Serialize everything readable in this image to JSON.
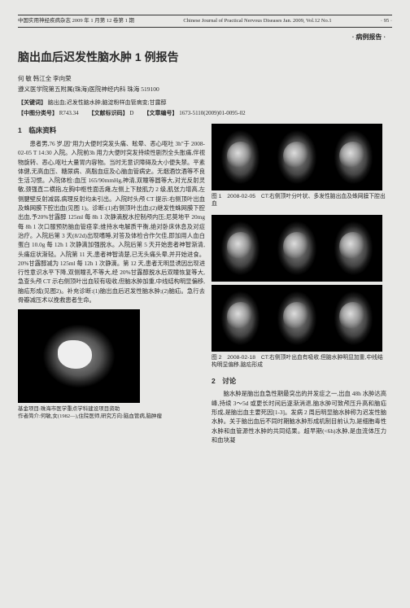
{
  "header": {
    "left": "中国实用神经疾病杂志 2009 年 1 月第 12 卷第 1 期",
    "center": "Chinese Journal of Practical Nervous Diseases Jan. 2009, Vol.12 No.1",
    "page": "· 95 ·"
  },
  "category": "· 病例报告 ·",
  "title": "脑出血后迟发性脑水肿 1 例报告",
  "authors": "何 敏   韩江全   李向荣",
  "affiliation": "遵义医学院第五附属(珠海)医院神经内科   珠海   519100",
  "keywords": {
    "label": "【关键词】",
    "text": "脑出血;迟发性脑水肿;脑淀粉样血管病变;甘露醇"
  },
  "classification": {
    "class_label": "【中图分类号】",
    "class_val": "R743.34",
    "doc_label": "【文献标识码】",
    "doc_val": "D",
    "article_label": "【文章编号】",
    "article_val": "1673-5110(2009)01-0095-02"
  },
  "section1_title": "1　临床资料",
  "body_text": "患者男,76 岁,因\"用力大便时突发头痛、眩晕、恶心呕吐 3h\"于 2008-02-05 T 14:30 入院。入院前3h 用力大便时突发持续性剧烈全头胀痛,伴视物旋转、恶心,呕吐大量胃内容物。当时无意识障碍及大小便失禁。平素体健,无高血压、糖尿病、高脂血症及心脑血管病史。无烟酒饮酒等不良生活习惯。入院体检:血压 165/90mmHg,神清,双瞳等圆等大,对光反射灵敏,颈强直二横指,左胸中枢性面舌瘫,左侧上下肢肌力 2 级,肌张力增高,左侧腱壁反射减弱,病理反射均未引出。入院时头颅 CT 提示:右侧顶叶出血及蛛网膜下腔出血(见图 1)。诊断:(1)右侧顶叶出血;(2)继发性蛛网膜下腔出血,予20%甘露醇 125ml 每 8h 1 次静滴脱水控制颅内压;尼莫地平 20mg 每 8h 1 次口服预防脑血管痉挛;维持水电解质平衡,绝对卧床休息及对症治疗。入院后第 3 天(8/2d)出现嗜睡,对答及体检合作欠佳,即加用人血白蛋白 10.0g 每 12h 1 次静滴加强脱水。入院后第 5 天开始患者神智渐清,头痛症状渐轻。入院第 11 天,患者神智清楚,已无头痛头晕,并开始进食。20%甘露醇减为 125ml 每 12h 1 次静滴。第 12 天,患者无明显诱因出现进行性意识水平下降,双侧瞳孔不等大,经 20%甘露醇脱水后双瞳恢复等大,急查头颅 CT 示右侧顶叶出血较有吸收,但脑水肿加重,中线结构明显偏移,脑疝形成(见图2)。补充诊断:(1)脑出血后迟发性脑水肿;(2)脑疝。急行去骨瓣减压术以挽救患者生命。",
  "fig1_caption": "图 1　2008-02-05　CT:右侧顶叶分叶状、多发性脑出血及蛛网膜下腔出血",
  "fig2_caption": "图 2　2008-02-18　CT:右侧顶叶出血有吸收,但脑水肿明显加重,中线结构明显偏移,脑疝形成",
  "section2_title": "2　讨论",
  "discussion_text": "脑水肿是脑出血急性期最突出的并发症之一,出血 48h 水肿达高峰,持续 3～5d 或更长时间后逐渐消退,脑水肿可致颅压升高和脑疝形成,是脑出血主要死因[1-3]。发病 2 周后明显脑水肿称为迟发性脑水肿。关于脑出血后不同时期脑水肿形成机制目前认为,是细胞毒性水肿和血管源性水肿的共同结果。超早期(<6h)水肿,是血流体压力和血块凝",
  "footer": {
    "fund": "基金项目:珠海市医学重点学科建设项目资助",
    "author": "作者简介:何敏,女(1982—),住院医师,研究方向:脑血管病,脑肿瘤"
  }
}
